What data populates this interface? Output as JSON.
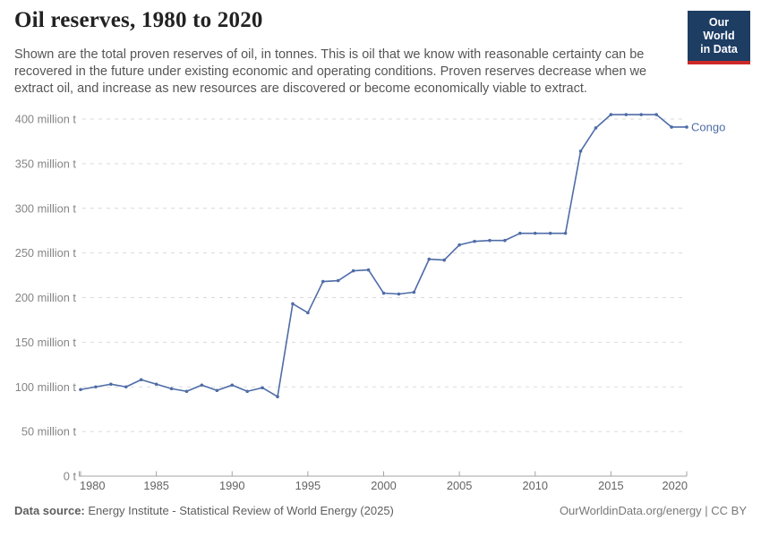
{
  "header": {
    "title": "Oil reserves, 1980 to 2020",
    "subtitle": "Shown are the total proven reserves of oil, in tonnes. This is oil that we know with reasonable certainty can be recovered in the future under existing economic and operating conditions. Proven reserves decrease when we extract oil, and increase as new resources are discovered or become economically viable to extract.",
    "logo": {
      "line1": "Our World",
      "line2": "in Data",
      "bg_color": "#1d3d63",
      "bar_color": "#cc2a28"
    }
  },
  "chart_data": {
    "type": "line",
    "title": "Oil reserves, 1980 to 2020",
    "unit": "million tonnes",
    "entity": "Congo",
    "x": [
      1980,
      1981,
      1982,
      1983,
      1984,
      1985,
      1986,
      1987,
      1988,
      1989,
      1990,
      1991,
      1992,
      1993,
      1994,
      1995,
      1996,
      1997,
      1998,
      1999,
      2000,
      2001,
      2002,
      2003,
      2004,
      2005,
      2006,
      2007,
      2008,
      2009,
      2010,
      2011,
      2012,
      2013,
      2014,
      2015,
      2016,
      2017,
      2018,
      2019,
      2020
    ],
    "series": [
      {
        "name": "Congo",
        "values": [
          97,
          100,
          103,
          100,
          108,
          103,
          98,
          95,
          102,
          96,
          102,
          95,
          99,
          89,
          193,
          183,
          218,
          219,
          230,
          231,
          205,
          204,
          206,
          243,
          242,
          259,
          263,
          264,
          264,
          272,
          272,
          272,
          272,
          364,
          390,
          405,
          405,
          405,
          405,
          391,
          391
        ]
      }
    ],
    "xlabel": "",
    "ylabel": "",
    "xlim": [
      1980,
      2020
    ],
    "ylim": [
      0,
      400
    ],
    "xticks": [
      1980,
      1985,
      1990,
      1995,
      2000,
      2005,
      2010,
      2015,
      2020
    ],
    "yticks": [
      0,
      50,
      100,
      150,
      200,
      250,
      300,
      350,
      400
    ],
    "ytick_labels": [
      "0 t",
      "50 million t",
      "100 million t",
      "150 million t",
      "200 million t",
      "250 million t",
      "300 million t",
      "350 million t",
      "400 million t"
    ],
    "grid": "horizontal-dashed",
    "legend_position": "end-of-line",
    "line_color": "#4e6ca6",
    "grid_color": "#dadada",
    "axis_color": "#a3a3a3",
    "ytick_label_color": "#858585",
    "xtick_label_color": "#636363"
  },
  "footer": {
    "datasource_label": "Data source:",
    "datasource_text": " Energy Institute - Statistical Review of World Energy (2025)",
    "right_text": "OurWorldinData.org/energy | CC BY"
  }
}
